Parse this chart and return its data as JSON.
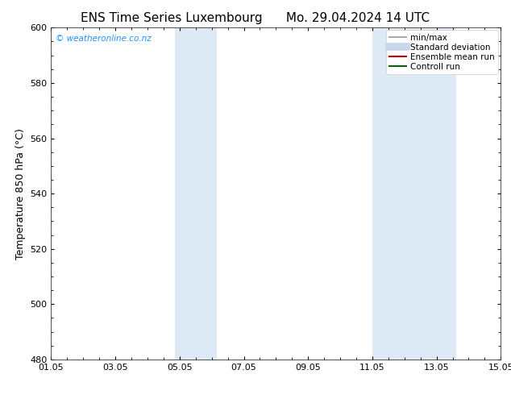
{
  "title_left": "ENS Time Series Luxembourg",
  "title_right": "Mo. 29.04.2024 14 UTC",
  "ylabel": "Temperature 850 hPa (°C)",
  "ylim": [
    480,
    600
  ],
  "yticks": [
    480,
    500,
    520,
    540,
    560,
    580,
    600
  ],
  "xtick_labels": [
    "01.05",
    "03.05",
    "05.05",
    "07.05",
    "09.05",
    "11.05",
    "13.05",
    "15.05"
  ],
  "xtick_positions": [
    0,
    2,
    4,
    6,
    8,
    10,
    12,
    14
  ],
  "xlim": [
    0,
    14
  ],
  "shaded_bands": [
    {
      "xmin": 3.85,
      "xmax": 5.15
    },
    {
      "xmin": 10.0,
      "xmax": 12.6
    }
  ],
  "shaded_color": "#ddeaf5",
  "bg_color": "#ffffff",
  "watermark_text": "© weatheronline.co.nz",
  "watermark_color": "#1e90ff",
  "legend_items": [
    {
      "label": "min/max",
      "color": "#aaaaaa",
      "lw": 1.5,
      "style": "solid"
    },
    {
      "label": "Standard deviation",
      "color": "#c8d8ec",
      "lw": 7,
      "style": "solid"
    },
    {
      "label": "Ensemble mean run",
      "color": "#cc0000",
      "lw": 1.5,
      "style": "solid"
    },
    {
      "label": "Controll run",
      "color": "#006600",
      "lw": 1.5,
      "style": "solid"
    }
  ],
  "title_fontsize": 11,
  "axis_label_fontsize": 9,
  "tick_fontsize": 8,
  "legend_fontsize": 7.5,
  "watermark_fontsize": 7.5
}
